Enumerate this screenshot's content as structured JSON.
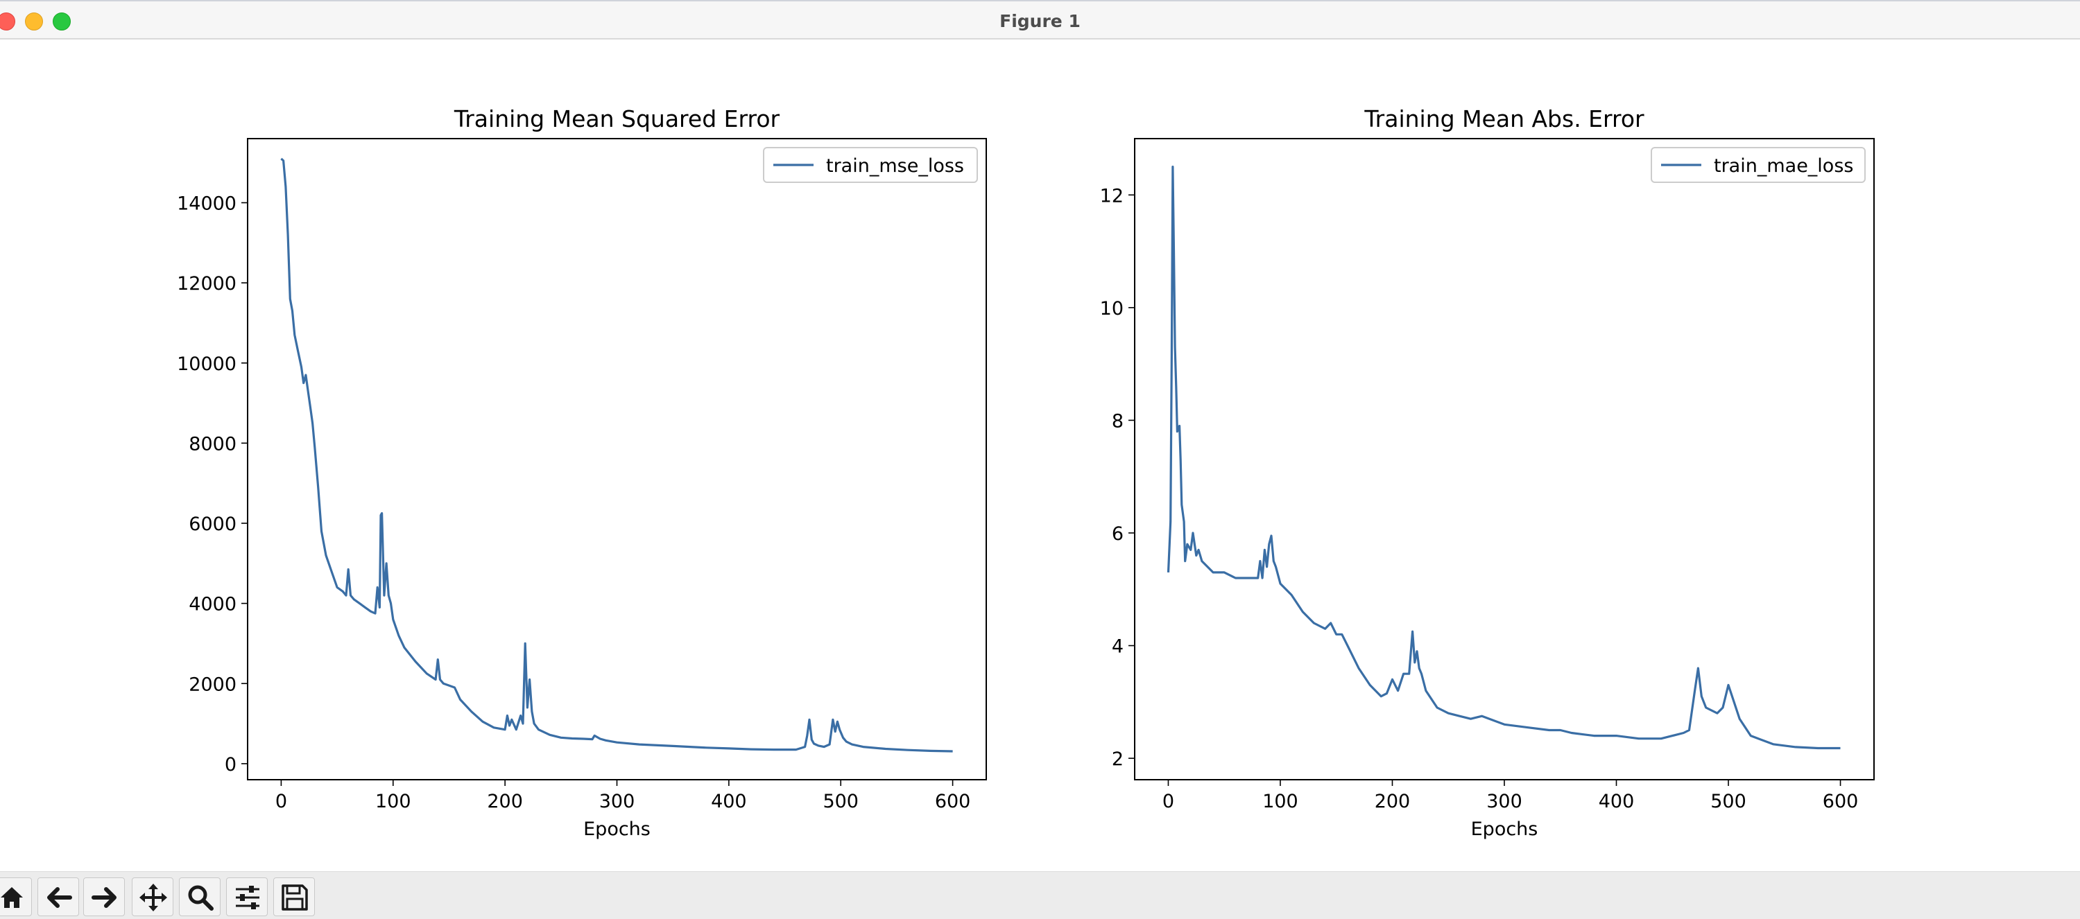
{
  "window": {
    "title": "Figure 1"
  },
  "toolbar": {
    "buttons": [
      {
        "name": "home-button",
        "icon": "home-icon"
      },
      {
        "name": "back-button",
        "icon": "arrow-left-icon"
      },
      {
        "name": "forward-button",
        "icon": "arrow-right-icon"
      },
      {
        "name": "pan-button",
        "icon": "move-icon"
      },
      {
        "name": "zoom-button",
        "icon": "zoom-icon"
      },
      {
        "name": "configure-subplots-button",
        "icon": "sliders-icon"
      },
      {
        "name": "save-button",
        "icon": "save-icon"
      }
    ]
  },
  "chart_data": [
    {
      "type": "line",
      "title": "Training Mean Squared Error",
      "xlabel": "Epochs",
      "ylabel": "",
      "xlim": [
        -30,
        630
      ],
      "ylim": [
        -400,
        15600
      ],
      "xticks": [
        0,
        100,
        200,
        300,
        400,
        500,
        600
      ],
      "yticks": [
        0,
        2000,
        4000,
        6000,
        8000,
        10000,
        12000,
        14000
      ],
      "grid": false,
      "legend": "top-right",
      "color": "#3a6ea5",
      "series": [
        {
          "name": "train_mse_loss",
          "x": [
            0,
            2,
            4,
            6,
            8,
            10,
            12,
            15,
            18,
            20,
            22,
            24,
            26,
            28,
            30,
            33,
            36,
            40,
            45,
            50,
            55,
            58,
            60,
            62,
            65,
            70,
            75,
            80,
            84,
            86,
            88,
            89,
            90,
            92,
            94,
            96,
            98,
            100,
            105,
            110,
            120,
            130,
            138,
            140,
            142,
            145,
            150,
            155,
            160,
            170,
            180,
            190,
            200,
            202,
            204,
            206,
            210,
            214,
            216,
            218,
            220,
            222,
            224,
            226,
            230,
            240,
            250,
            260,
            270,
            278,
            280,
            285,
            290,
            300,
            320,
            350,
            380,
            400,
            420,
            440,
            460,
            468,
            470,
            472,
            474,
            476,
            480,
            485,
            490,
            493,
            495,
            497,
            499,
            502,
            505,
            510,
            520,
            540,
            560,
            580,
            600
          ],
          "values": [
            15100,
            15050,
            14400,
            13200,
            11600,
            11300,
            10700,
            10300,
            9900,
            9500,
            9700,
            9300,
            8900,
            8500,
            7900,
            6900,
            5800,
            5200,
            4800,
            4400,
            4300,
            4200,
            4850,
            4200,
            4100,
            4000,
            3900,
            3800,
            3750,
            4400,
            3900,
            6200,
            6250,
            4200,
            5000,
            4200,
            4000,
            3600,
            3200,
            2900,
            2550,
            2250,
            2100,
            2600,
            2100,
            2000,
            1950,
            1900,
            1600,
            1300,
            1050,
            900,
            850,
            1200,
            950,
            1100,
            850,
            1200,
            1000,
            3000,
            1400,
            2100,
            1300,
            1000,
            850,
            720,
            650,
            630,
            620,
            610,
            700,
            620,
            580,
            530,
            480,
            440,
            400,
            380,
            360,
            350,
            350,
            420,
            700,
            1100,
            600,
            500,
            450,
            420,
            480,
            1100,
            800,
            1050,
            850,
            650,
            550,
            480,
            420,
            370,
            340,
            320,
            310
          ]
        }
      ]
    },
    {
      "type": "line",
      "title": "Training Mean Abs. Error",
      "xlabel": "Epochs",
      "ylabel": "",
      "xlim": [
        -30,
        630
      ],
      "ylim": [
        1.62,
        13.0
      ],
      "xticks": [
        0,
        100,
        200,
        300,
        400,
        500,
        600
      ],
      "yticks": [
        2,
        4,
        6,
        8,
        10,
        12
      ],
      "grid": false,
      "legend": "top-right",
      "color": "#3a6ea5",
      "series": [
        {
          "name": "train_mae_loss",
          "x": [
            0,
            2,
            3,
            4,
            5,
            6,
            7,
            8,
            10,
            11,
            12,
            14,
            15,
            17,
            20,
            22,
            25,
            27,
            30,
            35,
            40,
            50,
            60,
            70,
            80,
            82,
            84,
            86,
            88,
            90,
            92,
            94,
            96,
            100,
            110,
            120,
            130,
            140,
            145,
            150,
            155,
            160,
            170,
            180,
            190,
            195,
            200,
            205,
            210,
            215,
            218,
            220,
            222,
            224,
            226,
            230,
            240,
            250,
            260,
            270,
            280,
            300,
            320,
            340,
            350,
            360,
            380,
            400,
            420,
            440,
            450,
            460,
            465,
            470,
            473,
            476,
            480,
            490,
            495,
            500,
            505,
            510,
            520,
            540,
            560,
            580,
            600
          ],
          "values": [
            5.3,
            6.2,
            9.0,
            12.5,
            11.0,
            9.3,
            8.6,
            7.8,
            7.9,
            7.3,
            6.5,
            6.2,
            5.5,
            5.8,
            5.7,
            6.0,
            5.6,
            5.7,
            5.5,
            5.4,
            5.3,
            5.3,
            5.2,
            5.2,
            5.2,
            5.5,
            5.2,
            5.7,
            5.4,
            5.8,
            5.95,
            5.5,
            5.4,
            5.1,
            4.9,
            4.6,
            4.4,
            4.3,
            4.4,
            4.2,
            4.2,
            4.0,
            3.6,
            3.3,
            3.1,
            3.15,
            3.4,
            3.2,
            3.5,
            3.5,
            4.25,
            3.7,
            3.9,
            3.6,
            3.5,
            3.2,
            2.9,
            2.8,
            2.75,
            2.7,
            2.75,
            2.6,
            2.55,
            2.5,
            2.5,
            2.45,
            2.4,
            2.4,
            2.35,
            2.35,
            2.4,
            2.45,
            2.5,
            3.2,
            3.6,
            3.1,
            2.9,
            2.8,
            2.9,
            3.3,
            3.0,
            2.7,
            2.4,
            2.25,
            2.2,
            2.18,
            2.18
          ]
        }
      ]
    }
  ]
}
